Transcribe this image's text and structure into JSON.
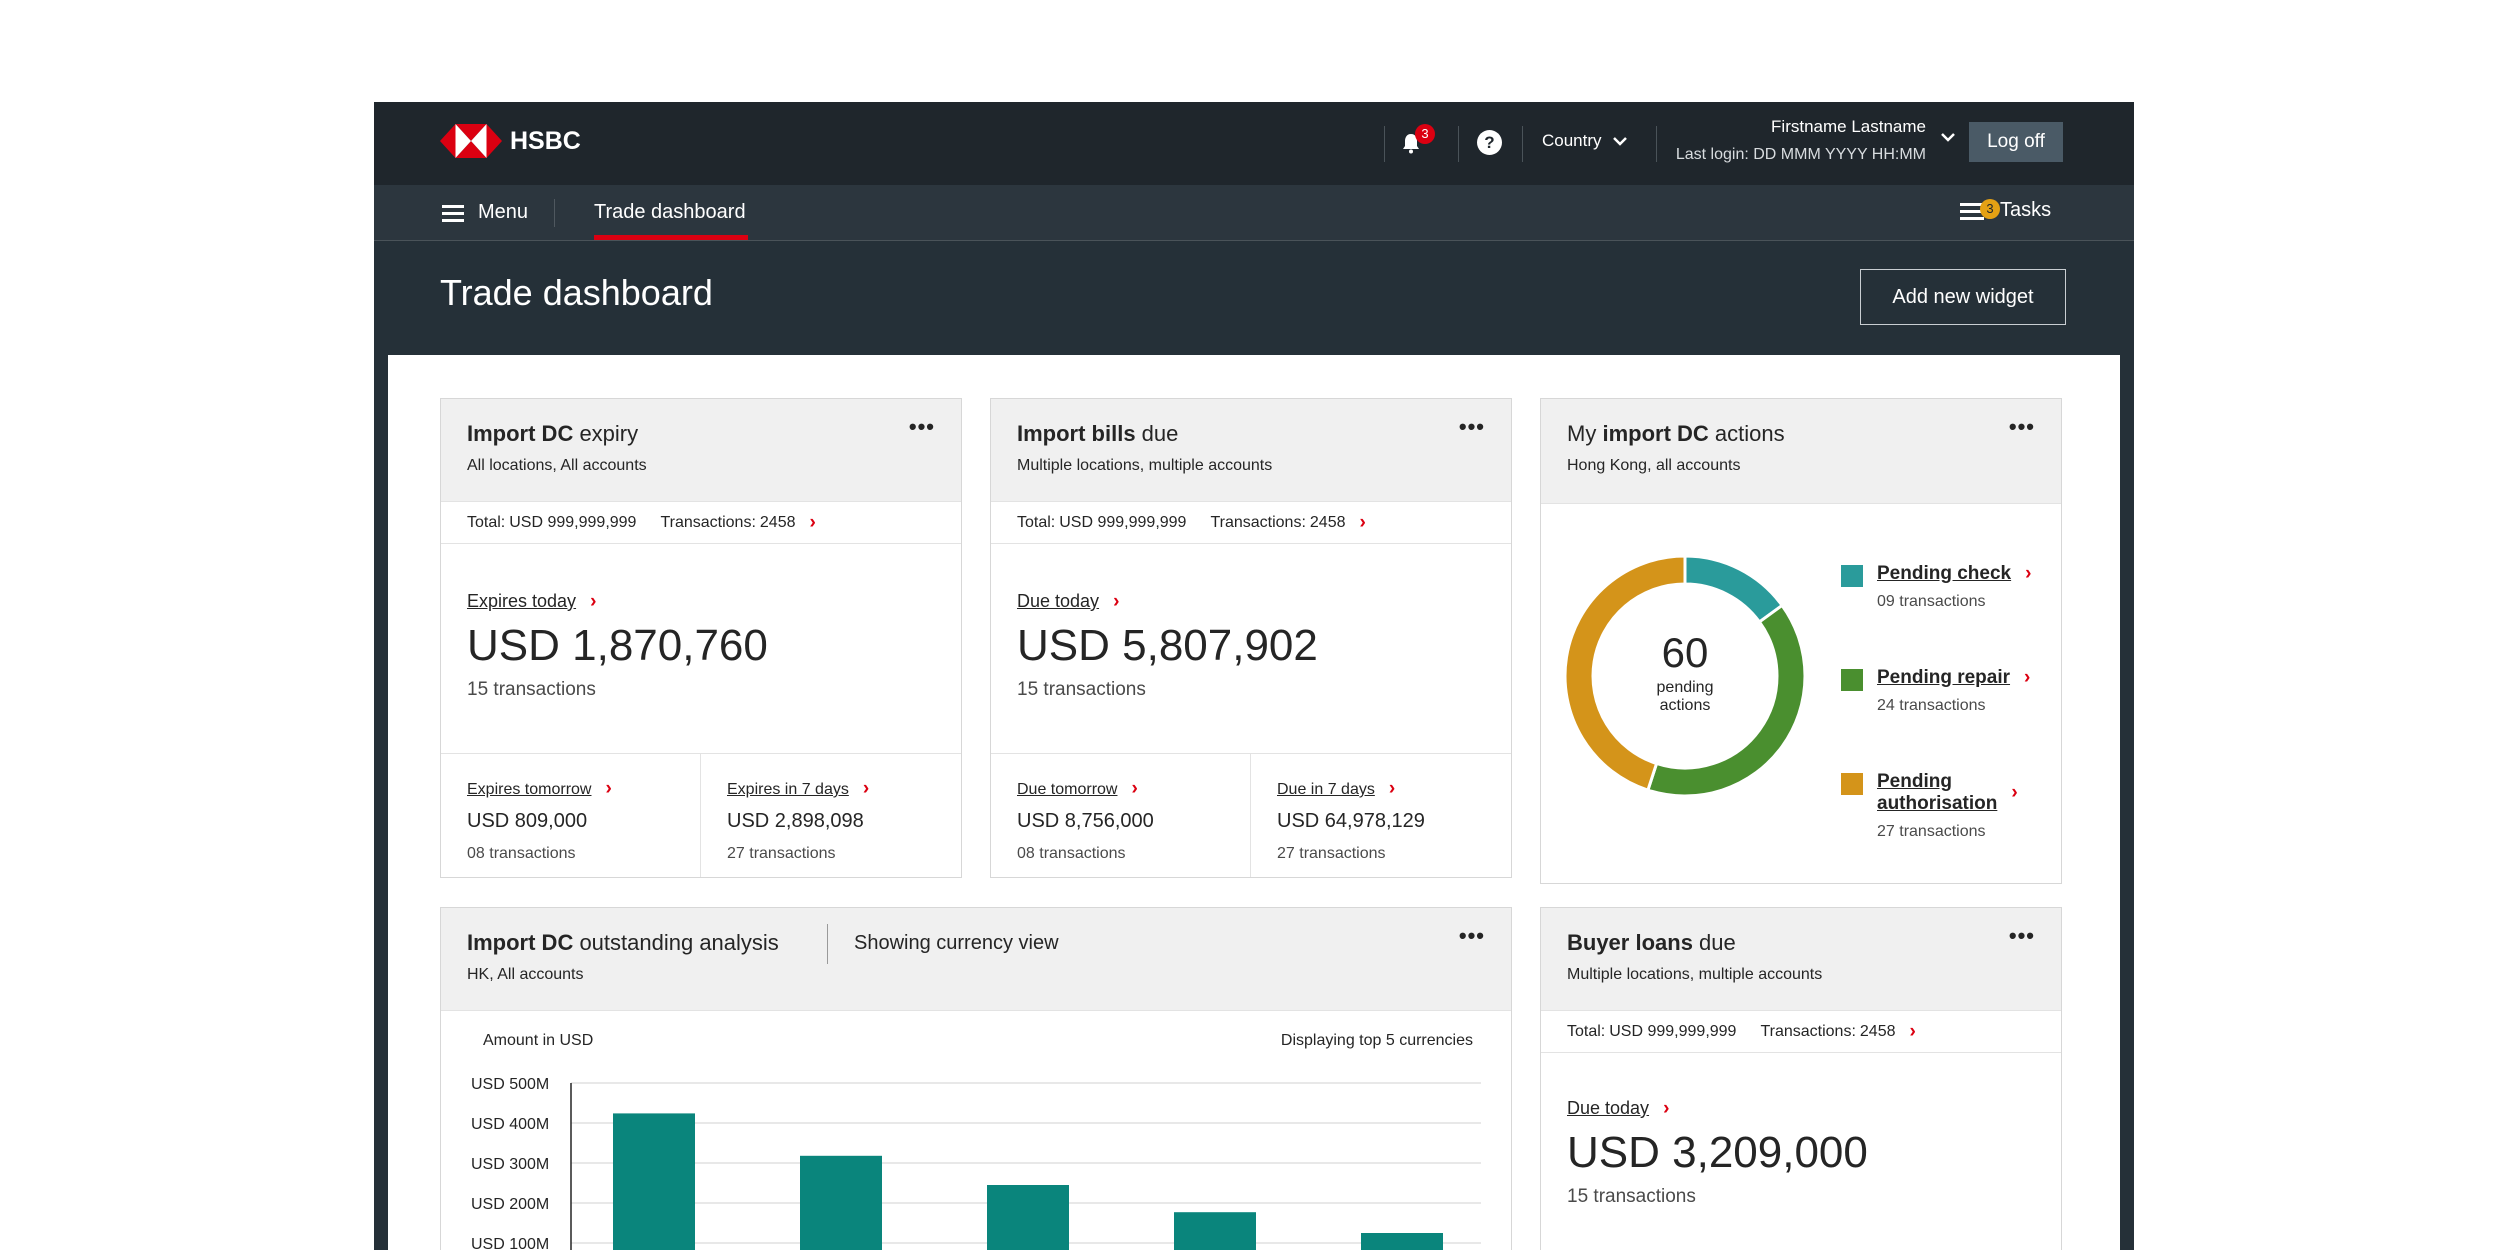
{
  "header": {
    "brand": "HSBC",
    "notifications_count": "3",
    "help_label": "?",
    "country_label": "Country",
    "user_name": "Firstname Lastname",
    "last_login": "Last login: DD MMM YYYY HH:MM",
    "logoff_label": "Log off"
  },
  "nav": {
    "menu_label": "Menu",
    "active_tab": "Trade dashboard",
    "tasks_label": "Tasks",
    "tasks_count": "3"
  },
  "page": {
    "title": "Trade dashboard",
    "add_widget_label": "Add new widget"
  },
  "colors": {
    "brand_red": "#db0011",
    "teal": "#2a9b9b",
    "green": "#4a8f2f",
    "amber": "#d4941a",
    "bar": "#0a857c"
  },
  "import_dc_expiry": {
    "title_bold": "Import DC",
    "title_rest": " expiry",
    "subtitle": "All locations, All accounts",
    "total_label": "Total:",
    "total_value": "USD 999,999,999",
    "tx_label": "Transactions:",
    "tx_value": "2458",
    "main_link": "Expires today",
    "main_amount": "USD 1,870,760",
    "main_tx": "15 transactions",
    "left_link": "Expires tomorrow",
    "left_amount": "USD 809,000",
    "left_tx": "08 transactions",
    "right_link": "Expires in 7 days",
    "right_amount": "USD 2,898,098",
    "right_tx": "27 transactions"
  },
  "import_bills_due": {
    "title_bold": "Import bills",
    "title_rest": " due",
    "subtitle": "Multiple locations, multiple accounts",
    "total_label": "Total:",
    "total_value": "USD 999,999,999",
    "tx_label": "Transactions:",
    "tx_value": "2458",
    "main_link": "Due today",
    "main_amount": "USD 5,807,902",
    "main_tx": "15 transactions",
    "left_link": "Due tomorrow",
    "left_amount": "USD 8,756,000",
    "left_tx": "08 transactions",
    "right_link": "Due in 7 days",
    "right_amount": "USD 64,978,129",
    "right_tx": "27 transactions"
  },
  "my_import_dc_actions": {
    "title_pre": "My ",
    "title_bold": "import DC",
    "title_rest": " actions",
    "subtitle": "Hong Kong, all accounts",
    "center_value": "60",
    "center_label_1": "pending",
    "center_label_2": "actions",
    "segments": [
      {
        "name": "Pending check",
        "value": 9,
        "tx": "09 transactions",
        "color": "#2a9b9b"
      },
      {
        "name": "Pending repair",
        "value": 24,
        "tx": "24 transactions",
        "color": "#4a8f2f"
      },
      {
        "name": "Pending authorisation",
        "value": 27,
        "tx": "27 transactions",
        "color": "#d4941a"
      }
    ],
    "auth_line1": "Pending",
    "auth_line2": "authorisation"
  },
  "outstanding_analysis": {
    "title_bold": "Import DC",
    "title_rest": " outstanding analysis",
    "view_label": "Showing currency view",
    "subtitle": "HK, All accounts",
    "amount_label": "Amount in USD",
    "display_label": "Displaying top 5 currencies"
  },
  "chart_data": {
    "type": "bar",
    "ylabel": "Amount in USD",
    "yticks": [
      "USD 500M",
      "USD 400M",
      "USD 300M",
      "USD 200M",
      "USD 100M"
    ],
    "ylim": [
      0,
      500
    ],
    "values": [
      424,
      318,
      245,
      177,
      125
    ],
    "grid": true
  },
  "buyer_loans": {
    "title_bold": "Buyer loans",
    "title_rest": " due",
    "subtitle": "Multiple locations, multiple accounts",
    "total_label": "Total:",
    "total_value": "USD 999,999,999",
    "tx_label": "Transactions:",
    "tx_value": "2458",
    "main_link": "Due today",
    "main_amount": "USD 3,209,000",
    "main_tx": "15 transactions"
  }
}
